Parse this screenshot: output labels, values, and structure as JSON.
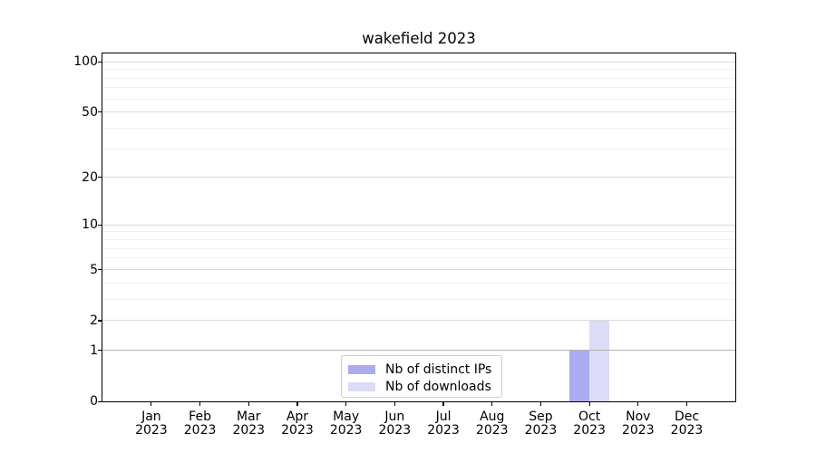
{
  "title": "wakefield 2023",
  "chart_data": {
    "type": "bar",
    "title": "wakefield 2023",
    "categories": [
      "Jan 2023",
      "Feb 2023",
      "Mar 2023",
      "Apr 2023",
      "May 2023",
      "Jun 2023",
      "Jul 2023",
      "Aug 2023",
      "Sep 2023",
      "Oct 2023",
      "Nov 2023",
      "Dec 2023"
    ],
    "series": [
      {
        "name": "Nb of distinct IPs",
        "color": "#ababf2",
        "values": [
          0,
          0,
          0,
          0,
          0,
          0,
          0,
          0,
          0,
          1,
          0,
          0
        ]
      },
      {
        "name": "Nb of downloads",
        "color": "#dcdcf6",
        "values": [
          0,
          0,
          0,
          0,
          0,
          0,
          0,
          0,
          0,
          2,
          0,
          0
        ]
      }
    ],
    "y_axis": {
      "scale": "log1p",
      "tick_labels": [
        0,
        1,
        2,
        5,
        10,
        20,
        50,
        100
      ],
      "major_gridlines": [
        2,
        5,
        10,
        20,
        50,
        100
      ],
      "minor_gridlines": [
        3,
        4,
        6,
        7,
        8,
        9,
        30,
        40,
        60,
        70,
        80,
        90
      ],
      "baseline_gridline": 1,
      "ylim": [
        0,
        112
      ]
    },
    "legend_position": "bottom-center",
    "grid": true,
    "colors": {
      "major_grid": "#dbdbdb",
      "minor_grid": "#f0f0f0",
      "baseline_grid": "#b3b3b3",
      "axis": "#000000",
      "text": "#000000",
      "background": "#ffffff"
    }
  }
}
